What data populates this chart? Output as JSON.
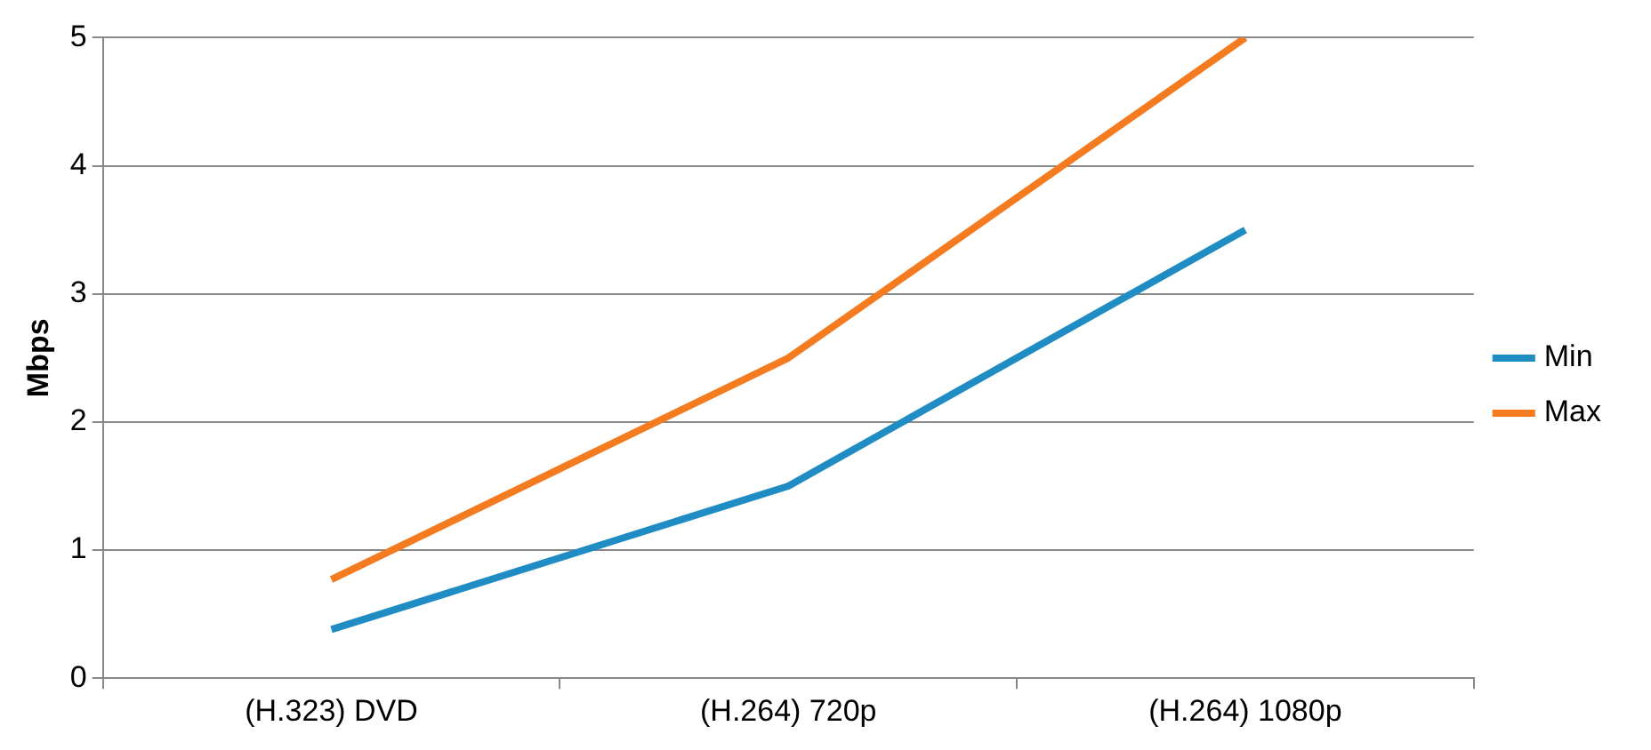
{
  "chart_data": {
    "type": "line",
    "ylabel": "Mbps",
    "categories": [
      "(H.323) DVD",
      "(H.264) 720p",
      "(H.264) 1080p"
    ],
    "series": [
      {
        "name": "Min",
        "color": "#1f8dc4",
        "values": [
          0.38,
          1.5,
          3.5
        ]
      },
      {
        "name": "Max",
        "color": "#f47b20",
        "values": [
          0.77,
          2.5,
          5.0
        ]
      }
    ],
    "ylim": [
      0,
      5
    ],
    "yticks": [
      0,
      1,
      2,
      3,
      4,
      5
    ],
    "grid": "y",
    "legend": "right",
    "marker": "none",
    "line_style": "solid"
  }
}
